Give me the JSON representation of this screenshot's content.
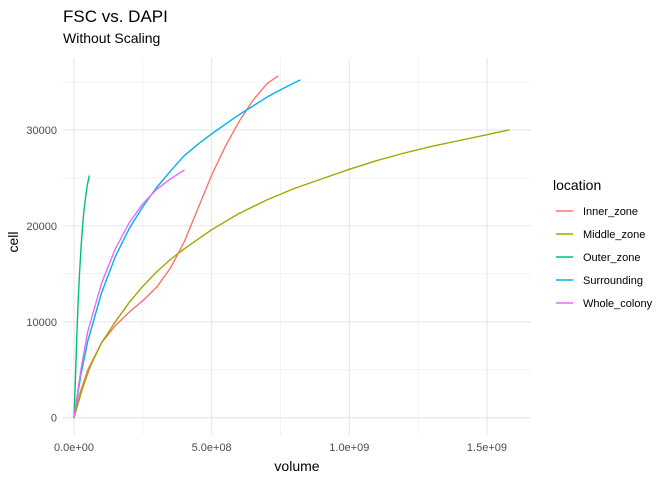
{
  "chart_data": {
    "type": "line",
    "title": "FSC vs. DAPI",
    "subtitle": "Without Scaling",
    "xlabel": "volume",
    "ylabel": "cell",
    "xlim": [
      -40000000,
      1660000000
    ],
    "ylim": [
      -1800,
      37500
    ],
    "x_ticks": [
      0,
      500000000,
      1000000000,
      1500000000
    ],
    "x_tick_labels": [
      "0.0e+00",
      "5.0e+08",
      "1.0e+09",
      "1.5e+09"
    ],
    "y_ticks": [
      0,
      10000,
      20000,
      30000
    ],
    "y_tick_labels": [
      "0",
      "10000",
      "20000",
      "30000"
    ],
    "grid": true,
    "legend": {
      "title": "location",
      "position": "right"
    },
    "series": [
      {
        "name": "Inner_zone",
        "color": "#F8766D",
        "x": [
          0,
          20000000,
          50000000,
          100000000,
          150000000,
          200000000,
          250000000,
          300000000,
          350000000,
          400000000,
          450000000,
          500000000,
          550000000,
          600000000,
          650000000,
          700000000,
          740000000
        ],
        "y": [
          0,
          2400,
          5000,
          7800,
          9600,
          11000,
          12200,
          13600,
          15600,
          18300,
          21800,
          25300,
          28300,
          30900,
          33100,
          34800,
          35600
        ]
      },
      {
        "name": "Middle_zone",
        "color": "#A3A500",
        "x": [
          0,
          30000000,
          60000000,
          100000000,
          150000000,
          200000000,
          250000000,
          300000000,
          350000000,
          400000000,
          500000000,
          600000000,
          700000000,
          800000000,
          900000000,
          1000000000,
          1100000000,
          1200000000,
          1300000000,
          1400000000,
          1500000000,
          1580000000
        ],
        "y": [
          0,
          3000,
          5400,
          7800,
          10000,
          12000,
          13700,
          15200,
          16500,
          17600,
          19600,
          21300,
          22700,
          23900,
          24900,
          25900,
          26800,
          27600,
          28300,
          28900,
          29500,
          30000
        ]
      },
      {
        "name": "Outer_zone",
        "color": "#00BF7D",
        "x": [
          0,
          5000000,
          10000000,
          15000000,
          20000000,
          25000000,
          30000000,
          35000000,
          40000000,
          45000000,
          50000000,
          55000000
        ],
        "y": [
          0,
          4000,
          8500,
          12000,
          15000,
          17500,
          19600,
          21200,
          22500,
          23600,
          24500,
          25200
        ]
      },
      {
        "name": "Surrounding",
        "color": "#00B0F6",
        "x": [
          0,
          25000000,
          50000000,
          100000000,
          150000000,
          200000000,
          250000000,
          300000000,
          350000000,
          400000000,
          450000000,
          500000000,
          550000000,
          600000000,
          650000000,
          700000000,
          750000000,
          820000000
        ],
        "y": [
          0,
          4500,
          8000,
          13000,
          16800,
          19700,
          22000,
          24000,
          25700,
          27300,
          28500,
          29600,
          30600,
          31600,
          32500,
          33400,
          34200,
          35200
        ]
      },
      {
        "name": "Whole_colony",
        "color": "#E76BF3",
        "x": [
          0,
          25000000,
          50000000,
          100000000,
          150000000,
          200000000,
          250000000,
          300000000,
          350000000,
          400000000
        ],
        "y": [
          0,
          5000,
          9000,
          14000,
          17600,
          20300,
          22300,
          23800,
          24900,
          25800
        ]
      }
    ]
  }
}
